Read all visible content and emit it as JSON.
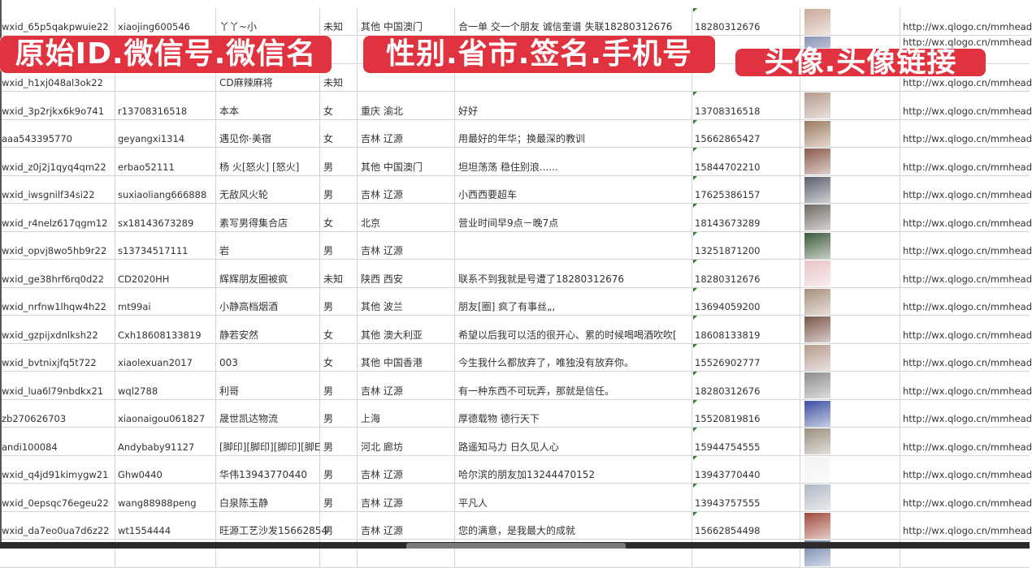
{
  "overlays": {
    "label1": "原始ID.微信号.微信名",
    "label2": "性别.省市.签名.手机号",
    "label3": "头像.头像链接"
  },
  "colors": {
    "overlay": "#e0333f",
    "grid": "#d4d4d4",
    "triangle": "#2e7d32"
  },
  "rows": [
    {
      "id": "wxid_65p5qakpwuie22",
      "wechat": "xiaojing600546",
      "name": "丫丫~小",
      "gender": "未知",
      "region": "其他 中国澳门",
      "signature": "合一单 交一个朋友 诚信奎谱 失联18280312676",
      "phone": "18280312676",
      "avatar": "#c9a89a",
      "url": "http://wx.qlogo.cn/mmhead"
    },
    {
      "id": "",
      "wechat": "",
      "name": "",
      "gender": "",
      "region": "",
      "signature": "",
      "phone": "",
      "avatar": "#8a93b5",
      "url": "http://wx.qlogo.cn/mmhead"
    },
    {
      "id": "wxid_h1xj048al3ok22",
      "wechat": "",
      "name": "CD麻辣麻将",
      "gender": "未知",
      "region": "",
      "signature": "",
      "phone": "",
      "avatar": "",
      "url": "http://wx.qlogo.cn/mmhead"
    },
    {
      "id": "wxid_3p2rjkx6k9o741",
      "wechat": "r13708316518",
      "name": "本本",
      "gender": "女",
      "region": "重庆 渝北",
      "signature": "好好",
      "phone": "13708316518",
      "avatar": "#b39b8c",
      "url": "http://wx.qlogo.cn/mmhead"
    },
    {
      "id": "aaa543395770",
      "wechat": "geyangxi1314",
      "name": "遇见你·美宿",
      "gender": "女",
      "region": "吉林 辽源",
      "signature": "用最好的年华；换最深的教训",
      "phone": "15662865427",
      "avatar": "#9c7b5e",
      "url": "http://wx.qlogo.cn/mmhead"
    },
    {
      "id": "wxid_z0j2j1qyq4qm22",
      "wechat": "erbao52111",
      "name": "杨 火[怒火] [怒火]",
      "gender": "男",
      "region": "其他 中国澳门",
      "signature": "坦坦荡荡 稳住别浪......",
      "phone": "15844702210",
      "avatar": "#8b5a4a",
      "url": "http://wx.qlogo.cn/mmhead"
    },
    {
      "id": "wxid_iwsgnilf34si22",
      "wechat": "suxiaoliang666888",
      "name": "无敌风火轮",
      "gender": "男",
      "region": "吉林 辽源",
      "signature": "小西西要超车",
      "phone": "17625386157",
      "avatar": "#5a5f6e",
      "url": "http://wx.qlogo.cn/mmhead"
    },
    {
      "id": "wxid_r4nelz617qgm12",
      "wechat": "sx18143673289",
      "name": "素写男得集合店",
      "gender": "女",
      "region": "北京",
      "signature": "营业时间早9点－晚7点",
      "phone": "18143673289",
      "avatar": "#6e6a63",
      "url": "http://wx.qlogo.cn/mmhead"
    },
    {
      "id": "wxid_opvj8wo5hb9r22",
      "wechat": "s13734517111",
      "name": "岩",
      "gender": "男",
      "region": "吉林 辽源",
      "signature": "",
      "phone": "13251871200",
      "avatar": "#3d5a3a",
      "url": "http://wx.qlogo.cn/mmhead"
    },
    {
      "id": "wxid_ge38hrf6rq0d22",
      "wechat": "CD2020HH",
      "name": "辉辉朋友圈被疯",
      "gender": "未知",
      "region": "陕西 西安",
      "signature": "联系不到我就是号遭了18280312676",
      "phone": "18280312676",
      "avatar": "#e8c4c4",
      "url": "http://wx.qlogo.cn/mmhead"
    },
    {
      "id": "wxid_nrfnw1lhqw4h22",
      "wechat": "mt99ai",
      "name": "小静高档烟酒",
      "gender": "男",
      "region": "其他 波兰",
      "signature": "朋友[圈] 疯了有事丝„,",
      "phone": "13694059200",
      "avatar": "#a88f7e",
      "url": "http://wx.qlogo.cn/mmhead"
    },
    {
      "id": "wxid_gzpijxdnlksh22",
      "wechat": "Cxh18608133819",
      "name": "静若安然",
      "gender": "女",
      "region": "其他 澳大利亚",
      "signature": "希望以后我可以活的很开心、累的时候喝喝酒吹吹[",
      "phone": "18608133819",
      "avatar": "#7a5548",
      "url": "http://wx.qlogo.cn/mmhead"
    },
    {
      "id": "wxid_bvtnixjfq5t722",
      "wechat": "xiaolexuan2017",
      "name": "003",
      "gender": "女",
      "region": "其他 中国香港",
      "signature": "今生我什么都放弃了，唯独没有放弃你。",
      "phone": "15526902777",
      "avatar": "#b79a8e",
      "url": "http://wx.qlogo.cn/mmhead"
    },
    {
      "id": "wxid_lua6l79nbdkx21",
      "wechat": "wql2788",
      "name": "利哥",
      "gender": "男",
      "region": "吉林 辽源",
      "signature": "有一种东西不可玩弄，那就是信任。",
      "phone": "18280312676",
      "avatar": "#8c8c8c",
      "url": "http://wx.qlogo.cn/mmhead"
    },
    {
      "id": "zb270626703",
      "wechat": "xiaonaigou061827",
      "name": "晟世凯达物流",
      "gender": "男",
      "region": "上海",
      "signature": "厚德载物 德行天下",
      "phone": "15520819816",
      "avatar": "#3b4fa0",
      "url": "http://wx.qlogo.cn/mmhead"
    },
    {
      "id": "andi100084",
      "wechat": "Andybaby91127",
      "name": "[脚印][脚印][脚印][脚E",
      "gender": "男",
      "region": "河北 廊坊",
      "signature": "路遥知马力 日久见人心",
      "phone": "15944754555",
      "avatar": "#9a9080",
      "url": "http://wx.qlogo.cn/mmhead"
    },
    {
      "id": "wxid_q4jd91kimygw21",
      "wechat": "Ghw0440",
      "name": "华伟13943770440",
      "gender": "男",
      "region": "吉林 辽源",
      "signature": "哈尔滨的朋友加13244470152",
      "phone": "13943770440",
      "avatar": "#f2f2f2",
      "url": "http://wx.qlogo.cn/mmhead"
    },
    {
      "id": "wxid_0epsqc76egeu22",
      "wechat": "wang88988peng",
      "name": "白泉陈玉静",
      "gender": "男",
      "region": "吉林 辽源",
      "signature": "平凡人",
      "phone": "13943757555",
      "avatar": "#b0b8c4",
      "url": "http://wx.qlogo.cn/mmhead"
    },
    {
      "id": "wxid_da7eo0ua7d6z22",
      "wechat": "wt1554444",
      "name": "旺源工艺沙发15662854",
      "gender": "男",
      "region": "吉林 辽源",
      "signature": "您的满意，是我最大的成就",
      "phone": "15662854498",
      "avatar": "#a04a3a",
      "url": "http://wx.qlogo.cn/mmhead"
    },
    {
      "id": "",
      "wechat": "",
      "name": "",
      "gender": "",
      "region": "",
      "signature": "",
      "phone": "",
      "avatar": "#6a7fa8",
      "url": ""
    }
  ]
}
